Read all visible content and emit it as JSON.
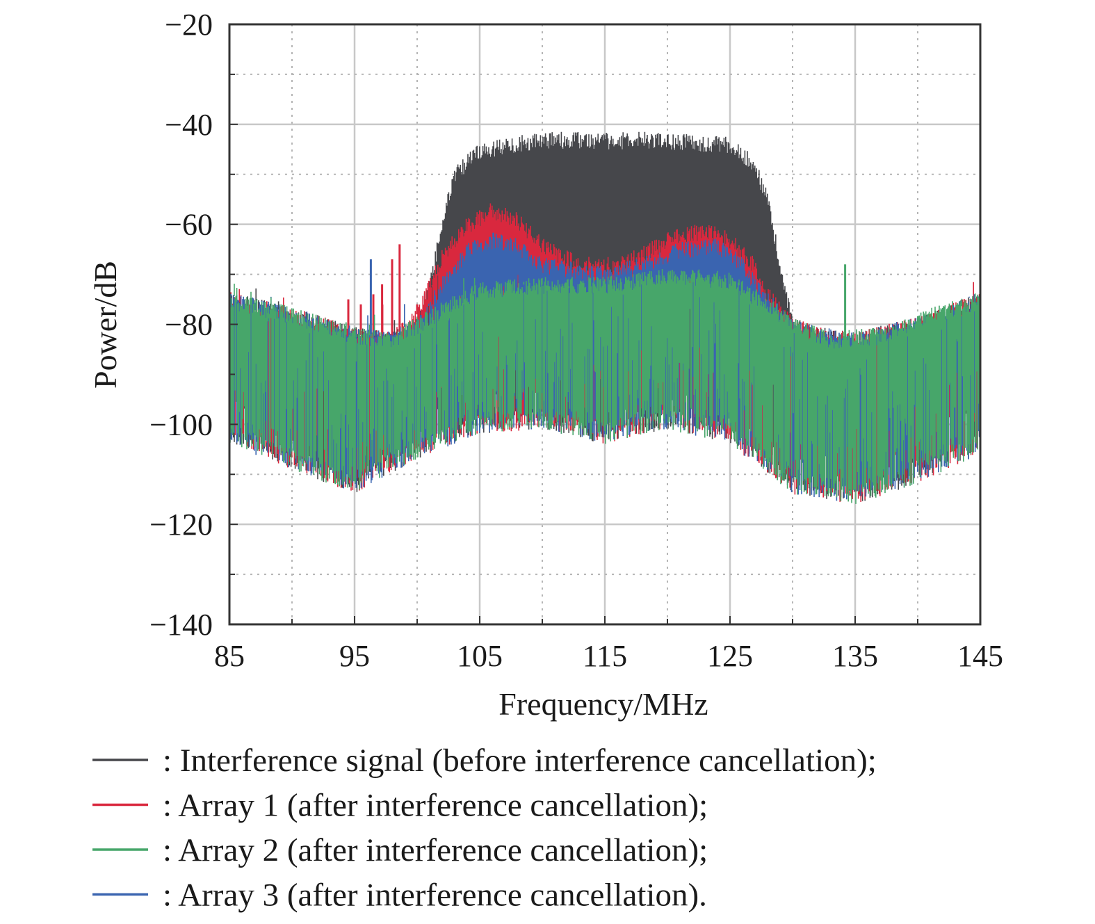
{
  "chart_data": {
    "type": "area",
    "title": "",
    "xlabel": "Frequency/MHz",
    "ylabel": "Power/dB",
    "xlim": [
      85,
      145
    ],
    "ylim": [
      -140,
      -20
    ],
    "xticks": [
      85,
      95,
      105,
      115,
      125,
      135,
      145
    ],
    "xtick_labels": [
      "85",
      "95",
      "105",
      "115",
      "125",
      "135",
      "145"
    ],
    "yticks": [
      -20,
      -40,
      -60,
      -80,
      -100,
      -120,
      -140
    ],
    "ytick_labels": [
      "−20",
      "−40",
      "−60",
      "−80",
      "−100",
      "−120",
      "−140"
    ],
    "grid": true,
    "legend_placement": "below",
    "series": [
      {
        "name": ": Interference signal (before interference cancellation);",
        "color": "#46474b",
        "upper_envelope": {
          "x": [
            85,
            90,
            95,
            98,
            100,
            101,
            102,
            103,
            105,
            110,
            115,
            120,
            125,
            127,
            128,
            129,
            130,
            132,
            135,
            140,
            145
          ],
          "y": [
            -75,
            -78,
            -82,
            -83,
            -80,
            -72,
            -60,
            -50,
            -45,
            -43,
            -43,
            -43,
            -44,
            -48,
            -55,
            -68,
            -80,
            -82,
            -83,
            -80,
            -75
          ]
        },
        "lower_envelope": {
          "x": [
            85,
            90,
            95,
            100,
            105,
            110,
            115,
            120,
            125,
            130,
            135,
            140,
            145
          ],
          "y": [
            -100,
            -105,
            -110,
            -103,
            -98,
            -97,
            -100,
            -97,
            -100,
            -110,
            -112,
            -108,
            -102
          ]
        }
      },
      {
        "name": ": Array 1 (after interference cancellation);",
        "color": "#d9283e",
        "upper_envelope": {
          "x": [
            85,
            90,
            95,
            98,
            100,
            101,
            102,
            104,
            106,
            108,
            110,
            113,
            116,
            118,
            120,
            123,
            125,
            127,
            128,
            130,
            132,
            135,
            140,
            145
          ],
          "y": [
            -75,
            -78,
            -82,
            -83,
            -78,
            -72,
            -66,
            -60,
            -57,
            -59,
            -64,
            -68,
            -68,
            -66,
            -63,
            -61,
            -63,
            -68,
            -74,
            -80,
            -82,
            -83,
            -80,
            -75
          ]
        },
        "lower_envelope": {
          "x": [
            85,
            90,
            95,
            100,
            105,
            110,
            115,
            120,
            125,
            130,
            135,
            140,
            145
          ],
          "y": [
            -100,
            -105,
            -110,
            -103,
            -98,
            -97,
            -100,
            -97,
            -100,
            -110,
            -112,
            -108,
            -102
          ]
        },
        "spikes": {
          "x": [
            94.5,
            95.5,
            96.5,
            97.2,
            98,
            98.6,
            100
          ],
          "y": [
            -75,
            -76,
            -74,
            -72,
            -67,
            -64,
            -76
          ]
        }
      },
      {
        "name": ": Array 2 (after interference cancellation);",
        "color": "#47a66a",
        "upper_envelope": {
          "x": [
            85,
            90,
            95,
            98,
            100,
            102,
            105,
            110,
            115,
            120,
            125,
            128,
            130,
            133,
            137,
            140,
            145
          ],
          "y": [
            -75,
            -78,
            -82,
            -83,
            -80,
            -77,
            -73,
            -72,
            -72,
            -70,
            -71,
            -76,
            -80,
            -83,
            -82,
            -79,
            -75
          ]
        },
        "lower_envelope": {
          "x": [
            85,
            90,
            95,
            100,
            105,
            110,
            115,
            120,
            125,
            130,
            135,
            140,
            145
          ],
          "y": [
            -100,
            -105,
            -110,
            -103,
            -98,
            -97,
            -100,
            -97,
            -100,
            -110,
            -112,
            -108,
            -102
          ]
        },
        "spikes": {
          "x": [
            134.2
          ],
          "y": [
            -68
          ]
        }
      },
      {
        "name": ": Array 3 (after interference cancellation).",
        "color": "#3a64b0",
        "upper_envelope": {
          "x": [
            85,
            90,
            95,
            98,
            100,
            102,
            104,
            106,
            108,
            110,
            115,
            118,
            121,
            124,
            126,
            128,
            130,
            132,
            135,
            140,
            145
          ],
          "y": [
            -75,
            -78,
            -82,
            -83,
            -80,
            -72,
            -65,
            -63,
            -64,
            -68,
            -70,
            -68,
            -65,
            -64,
            -68,
            -75,
            -80,
            -82,
            -83,
            -80,
            -75
          ]
        },
        "lower_envelope": {
          "x": [
            85,
            90,
            95,
            100,
            105,
            110,
            115,
            120,
            125,
            130,
            135,
            140,
            145
          ],
          "y": [
            -100,
            -105,
            -110,
            -103,
            -98,
            -97,
            -100,
            -97,
            -100,
            -110,
            -112,
            -108,
            -102
          ]
        },
        "spikes": {
          "x": [
            96.3
          ],
          "y": [
            -67
          ]
        }
      }
    ],
    "draw_order": [
      0,
      1,
      3,
      2
    ]
  }
}
